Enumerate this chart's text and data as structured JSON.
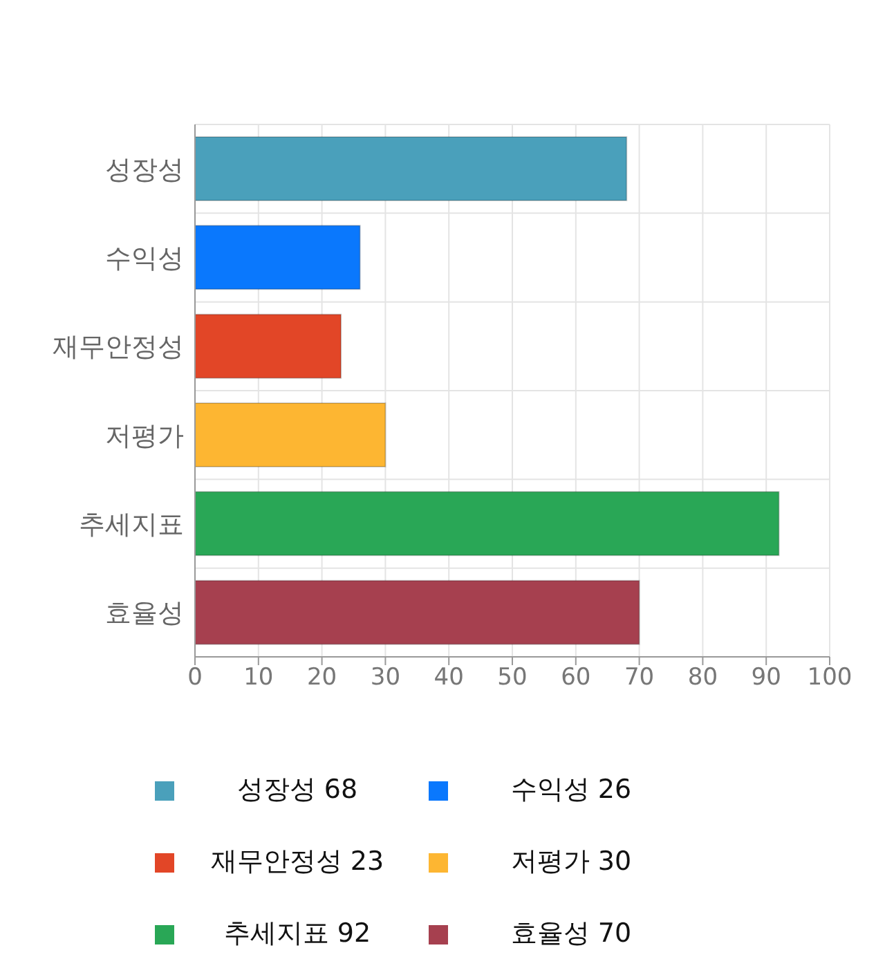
{
  "chart_data": {
    "type": "bar",
    "orientation": "horizontal",
    "stacked": true,
    "categories": [
      "성장성",
      "수익성",
      "재무안정성",
      "저평가",
      "추세지표",
      "효율성"
    ],
    "series": [
      {
        "name": "성장성 68",
        "color": "#4aa0bb",
        "values": [
          68,
          null,
          null,
          null,
          null,
          null
        ]
      },
      {
        "name": "수익성 26",
        "color": "#0a78fd",
        "values": [
          null,
          26,
          null,
          null,
          null,
          null
        ]
      },
      {
        "name": "재무안정성 23",
        "color": "#e24627",
        "values": [
          null,
          null,
          23,
          null,
          null,
          null
        ]
      },
      {
        "name": "저평가 30",
        "color": "#fdb632",
        "values": [
          null,
          null,
          null,
          30,
          null,
          null
        ]
      },
      {
        "name": "추세지표 92",
        "color": "#29a756",
        "values": [
          null,
          null,
          null,
          null,
          92,
          null
        ]
      },
      {
        "name": "효율성 70",
        "color": "#a6404f",
        "values": [
          null,
          null,
          null,
          null,
          null,
          70
        ]
      }
    ],
    "xlim": [
      0,
      100
    ],
    "xticks": [
      0,
      10,
      20,
      30,
      40,
      50,
      60,
      70,
      80,
      90,
      100
    ],
    "grid": true,
    "legend": "bottom"
  }
}
